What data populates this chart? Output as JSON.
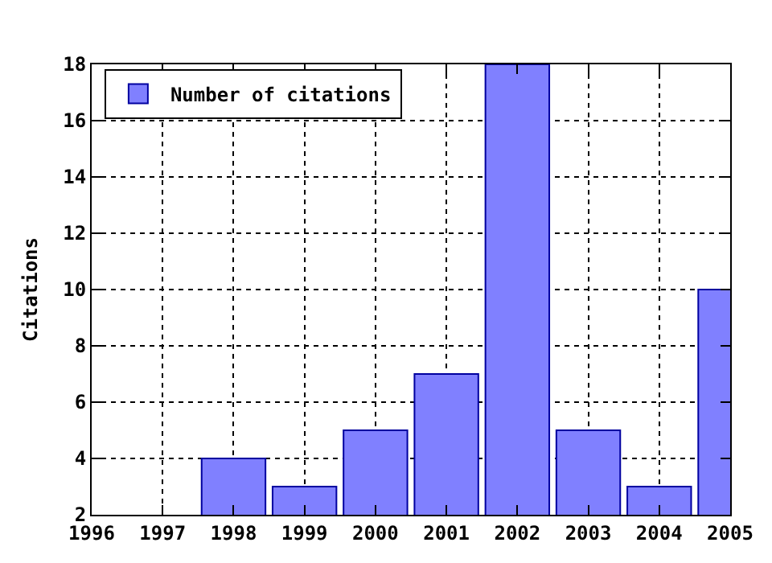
{
  "chart_data": {
    "type": "bar",
    "ylabel": "Citations",
    "x": [
      1998,
      1999,
      2000,
      2001,
      2002,
      2003,
      2004,
      2005
    ],
    "series": [
      {
        "name": "Number of citations",
        "color": "#8080ff",
        "values": [
          4,
          3,
          5,
          7,
          18,
          5,
          3,
          10
        ]
      }
    ],
    "xlim": [
      1996,
      2005
    ],
    "xticks": [
      1996,
      1997,
      1998,
      1999,
      2000,
      2001,
      2002,
      2003,
      2004,
      2005
    ],
    "ylim": [
      2,
      18
    ],
    "yticks": [
      2,
      4,
      6,
      8,
      10,
      12,
      14,
      16,
      18
    ],
    "grid": true,
    "legend": "top left"
  }
}
